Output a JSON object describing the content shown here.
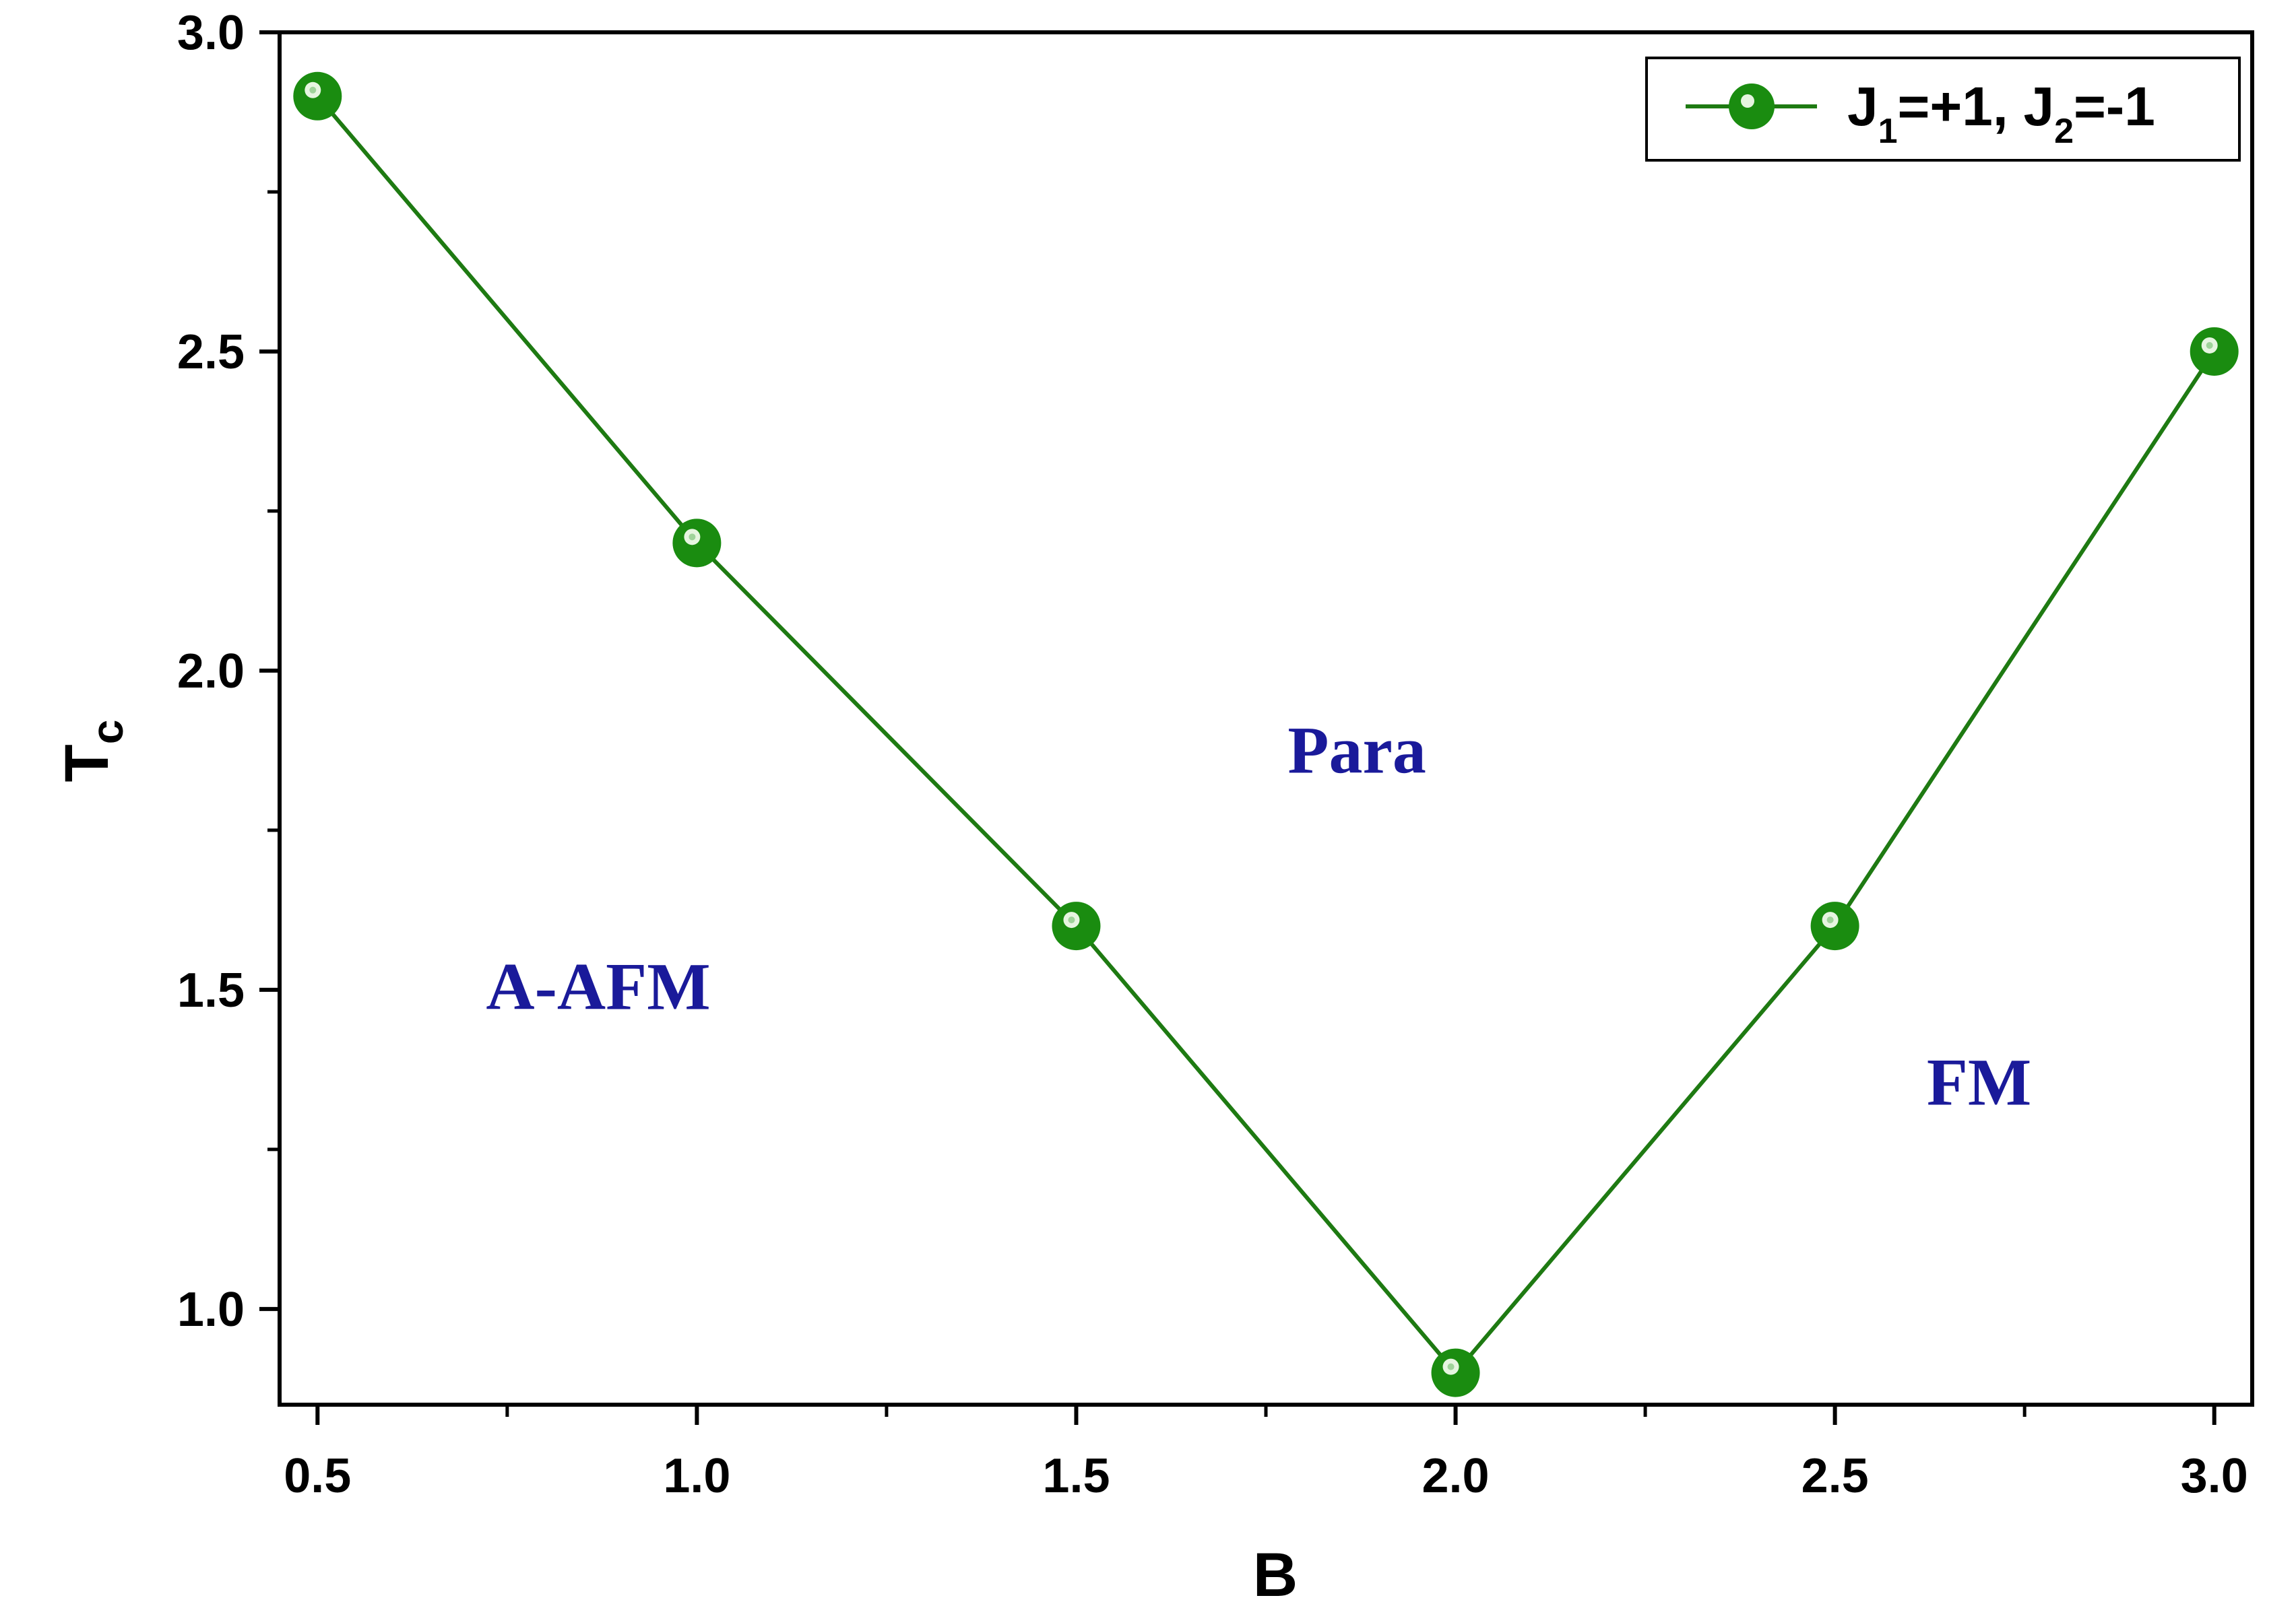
{
  "chart_data": {
    "type": "line",
    "title": "",
    "xlabel": "B",
    "ylabel": {
      "main": "T",
      "sub": "c"
    },
    "xlim": [
      0.45,
      3.05
    ],
    "ylim": [
      0.85,
      3.0
    ],
    "x_ticks": [
      "0.5",
      "1.0",
      "1.5",
      "2.0",
      "2.5",
      "3.0"
    ],
    "y_ticks": [
      "1.0",
      "1.5",
      "2.0",
      "2.5",
      "3.0"
    ],
    "x_tick_values": [
      0.5,
      1.0,
      1.5,
      2.0,
      2.5,
      3.0
    ],
    "y_tick_values": [
      1.0,
      1.5,
      2.0,
      2.5,
      3.0
    ],
    "x_minor_tick_values": [
      0.75,
      1.25,
      1.75,
      2.25,
      2.75
    ],
    "y_minor_tick_values": [
      1.25,
      1.75,
      2.25,
      2.75
    ],
    "legend_position": "top-right",
    "grid": false,
    "series": [
      {
        "name": {
          "j1": "J",
          "j1sub": "1",
          "mid": "=+1, J",
          "j2sub": "2",
          "end": "=-1"
        },
        "color": "#1e7a12",
        "marker_color": "#1a8c10",
        "x": [
          0.5,
          1.0,
          1.5,
          2.0,
          2.5,
          3.0
        ],
        "y": [
          2.9,
          2.2,
          1.6,
          0.9,
          1.6,
          2.5
        ]
      }
    ],
    "annotations": [
      {
        "text": "A-AFM",
        "x": 0.87,
        "y": 1.47
      },
      {
        "text": "Para",
        "x": 1.87,
        "y": 1.84
      },
      {
        "text": "FM",
        "x": 2.69,
        "y": 1.32
      }
    ]
  }
}
